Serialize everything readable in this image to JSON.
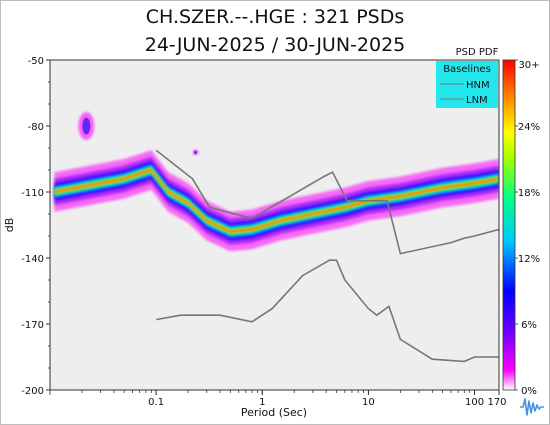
{
  "titles": {
    "line1": "CH.SZER.--.HGE : 321 PSDs",
    "line2": "24-JUN-2025 / 30-JUN-2025"
  },
  "colors": {
    "plot_background": "#eeeeee",
    "legend_background": "#22e8ee",
    "baseline_line": "#777777",
    "colormap": [
      "#ffffff",
      "#ff00ff",
      "#6a00ff",
      "#0000ff",
      "#00c8ff",
      "#00ff88",
      "#a0ff00",
      "#ffff00",
      "#ff9000",
      "#ff0000"
    ]
  },
  "colorbar": {
    "title": "PSD PDF",
    "tick_labels": [
      "30+",
      "24%",
      "18%",
      "12%",
      "6%",
      "0%"
    ],
    "tick_values": [
      30,
      24,
      18,
      12,
      6,
      0
    ],
    "range": [
      0,
      30
    ]
  },
  "logo": {
    "icon": "waveform-logo-icon"
  },
  "chart_data": {
    "type": "heatmap",
    "title": "CH.SZER.--.HGE : 321 PSDs",
    "subtitle": "24-JUN-2025 / 30-JUN-2025",
    "xlabel": "Period (Sec)",
    "ylabel": "dB",
    "x_scale": "log",
    "xlim": [
      0.01,
      170
    ],
    "ylim": [
      -200,
      -50
    ],
    "x_tick_values": [
      0.1,
      1,
      10,
      100,
      170
    ],
    "x_tick_labels": [
      "0.1",
      "1",
      "10",
      "100",
      "170"
    ],
    "y_tick_values": [
      -50,
      -80,
      -110,
      -140,
      -170,
      -200
    ],
    "y_tick_labels": [
      "-50",
      "-80",
      "-110",
      "-140",
      "-170",
      "-200"
    ],
    "legend": {
      "title": "Baselines",
      "placement": "top-right",
      "entries": [
        "HNM",
        "LNM"
      ]
    },
    "series": [
      {
        "name": "HNM",
        "x": [
          0.1,
          0.22,
          0.32,
          0.8,
          3.8,
          4.6,
          6.3,
          10,
          15,
          20,
          60,
          80,
          100,
          170
        ],
        "y": [
          -91,
          -104,
          -117,
          -122,
          -103,
          -101,
          -114,
          -114,
          -114,
          -138,
          -133,
          -131,
          -130,
          -127
        ]
      },
      {
        "name": "LNM",
        "x": [
          0.1,
          0.17,
          0.4,
          0.8,
          1.24,
          2.4,
          4.3,
          5,
          6,
          10,
          12,
          15.6,
          20,
          40,
          80,
          100,
          170
        ],
        "y": [
          -168,
          -166,
          -166,
          -169,
          -163,
          -148,
          -141,
          -141,
          -150,
          -163,
          -166,
          -162,
          -177,
          -186,
          -187,
          -185,
          -185
        ]
      }
    ],
    "density_bands": [
      {
        "x": [
          0.011,
          0.05,
          0.09,
          0.13,
          0.2,
          0.3,
          0.5,
          0.8,
          1.5,
          3,
          6,
          10,
          20,
          50,
          100,
          170
        ],
        "y": [
          -110,
          -104,
          -100,
          -110,
          -115,
          -123,
          -128,
          -127,
          -123,
          -120,
          -117,
          -114,
          -112,
          -108,
          -106,
          -104
        ]
      }
    ]
  }
}
